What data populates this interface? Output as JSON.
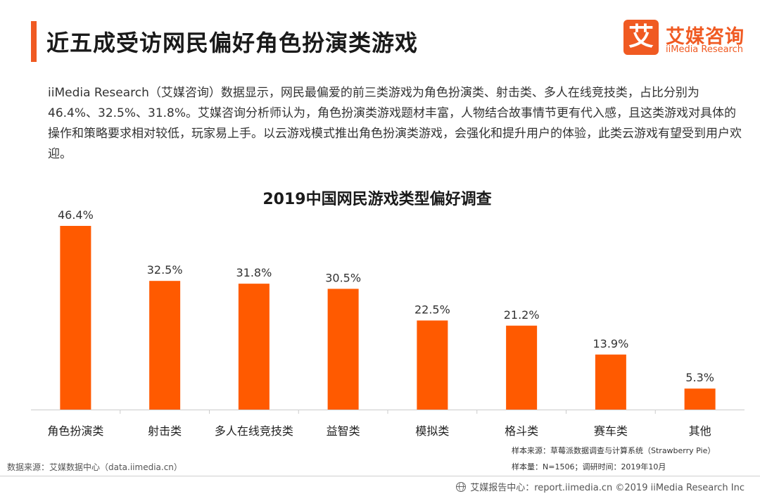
{
  "page": {
    "title": "近五成受访网民偏好角色扮演类游戏",
    "summary": "iiMedia Research（艾媒咨询）数据显示，网民最偏爱的前三类游戏为角色扮演类、射击类、多人在线竞技类，占比分别为46.4%、32.5%、31.8%。艾媒咨询分析师认为，角色扮演类游戏题材丰富，人物结合故事情节更有代入感，且这类游戏对具体的操作和策略要求相对较低，玩家易上手。以云游戏模式推出角色扮演类游戏，会强化和提升用户的体验，此类云游戏有望受到用户欢迎。"
  },
  "logo": {
    "mark": "艾",
    "name_cn": "艾媒咨询",
    "name_en": "iiMedia Research"
  },
  "notes": {
    "source": "数据来源：艾媒数据中心（data.iimedia.cn）",
    "sample_source": "样本来源：草莓派数据调查与计算系统（Strawberry Pie）",
    "sample_size": "样本量：N=1506；调研时间：2019年10月"
  },
  "footer": {
    "text": "艾媒报告中心：report.iimedia.cn ©2019  iiMedia Research  Inc"
  },
  "colors": {
    "accent": "#f05a22",
    "bar": "#ff5a00"
  },
  "chart_data": {
    "type": "bar",
    "title": "2019中国网民游戏类型偏好调查",
    "categories": [
      "角色扮演类",
      "射击类",
      "多人在线竞技类",
      "益智类",
      "模拟类",
      "格斗类",
      "赛车类",
      "其他"
    ],
    "values": [
      46.4,
      32.5,
      31.8,
      30.5,
      22.5,
      21.2,
      13.9,
      5.3
    ],
    "value_labels": [
      "46.4%",
      "32.5%",
      "31.8%",
      "30.5%",
      "22.5%",
      "21.2%",
      "13.9%",
      "5.3%"
    ],
    "unit": "%",
    "ylim": [
      0,
      46.4
    ],
    "grid": false,
    "legend": "none"
  }
}
